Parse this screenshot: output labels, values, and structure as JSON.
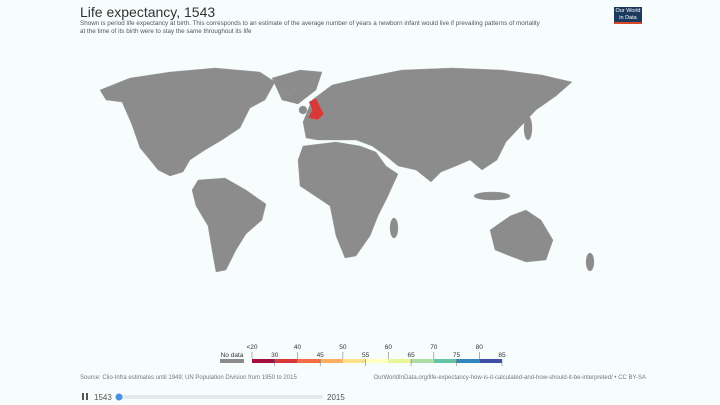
{
  "header": {
    "title": "Life expectancy, 1543",
    "subtitle": [
      "Shown is period life expectancy at birth. This corresponds to an estimate of the average number of years a newborn infant would live if prevailing patterns of mortality",
      "at the time of its birth were to stay the same throughout its life"
    ],
    "logo": [
      "Our World",
      "in Data"
    ]
  },
  "legend": {
    "no_data": {
      "label": "No data",
      "color": "#8c8c8c"
    },
    "labels": [
      "<20",
      "30",
      "40",
      "45",
      "50",
      "55",
      "60",
      "65",
      "70",
      "75",
      "80",
      "85"
    ],
    "colors": [
      "#a50f3b",
      "#d73838",
      "#f46d43",
      "#fdae61",
      "#fee08b",
      "#ffffbf",
      "#e6f598",
      "#abdda4",
      "#66c2a5",
      "#3288bd",
      "#3f4fa8"
    ]
  },
  "footer": {
    "source": "Source: Clio-Infra estimates until 1949; UN Population Division from 1950 to 2015",
    "url": "OurWorldInData.org/life-expectancy-how-is-it-calculated-and-how-should-it-be-interpreted/ • CC BY-SA"
  },
  "timeline": {
    "start": "1543",
    "end": "2015"
  }
}
